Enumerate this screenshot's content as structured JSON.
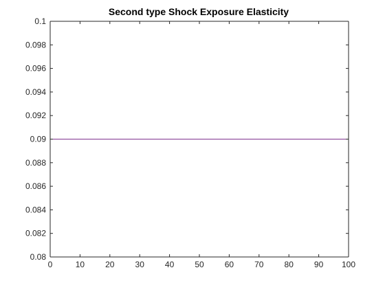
{
  "chart_data": {
    "type": "line",
    "title": "Second type Shock Exposure Elasticity",
    "xlabel": "",
    "ylabel": "",
    "xlim": [
      0,
      100
    ],
    "ylim": [
      0.08,
      0.1
    ],
    "xticks": [
      0,
      10,
      20,
      30,
      40,
      50,
      60,
      70,
      80,
      90,
      100
    ],
    "xtick_labels": [
      "0",
      "10",
      "20",
      "30",
      "40",
      "50",
      "60",
      "70",
      "80",
      "90",
      "100"
    ],
    "yticks": [
      0.08,
      0.082,
      0.084,
      0.086,
      0.088,
      0.09,
      0.092,
      0.094,
      0.096,
      0.098,
      0.1
    ],
    "ytick_labels": [
      "0.08",
      "0.082",
      "0.084",
      "0.086",
      "0.088",
      "0.09",
      "0.092",
      "0.094",
      "0.096",
      "0.098",
      "0.1"
    ],
    "grid": false,
    "series": [
      {
        "x": [
          0,
          100
        ],
        "y": [
          0.09,
          0.09
        ],
        "color": "#7e2f8e"
      }
    ]
  }
}
